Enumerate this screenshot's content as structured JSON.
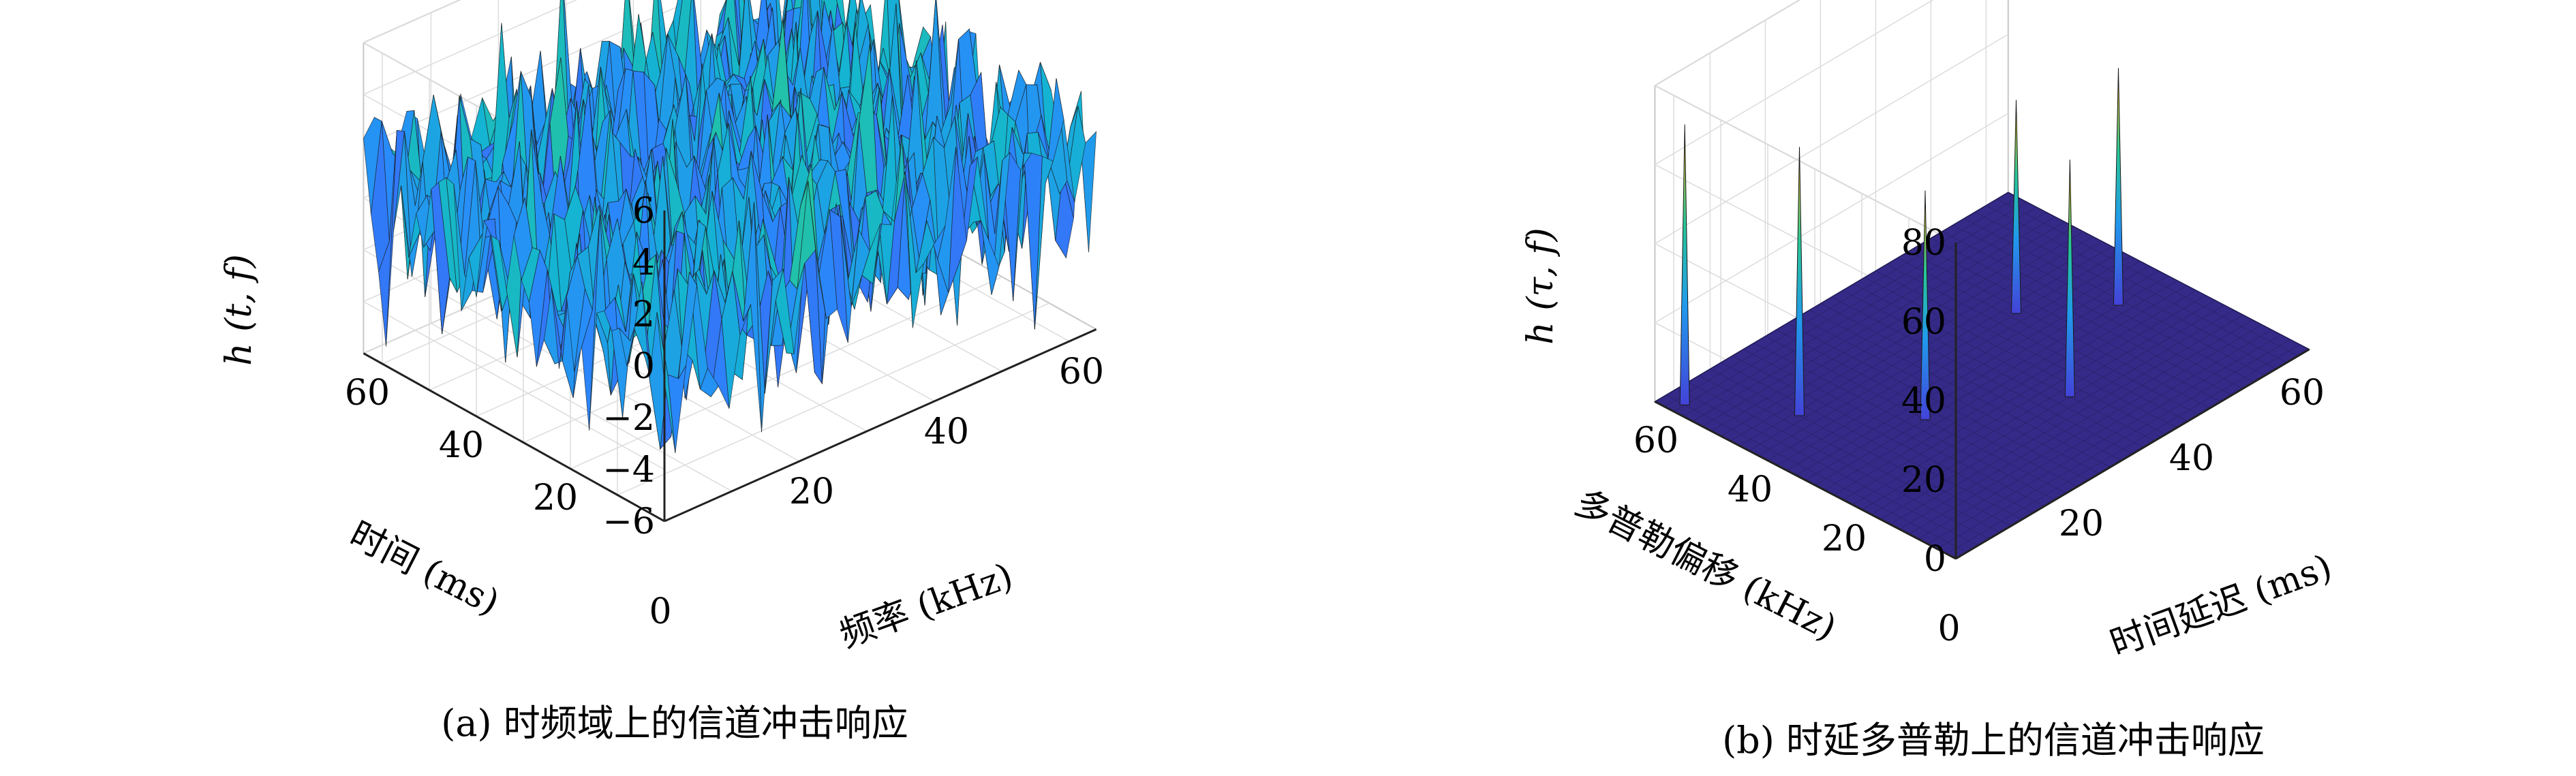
{
  "chart_data": [
    {
      "type": "surface",
      "subplot": "(a)",
      "caption": "(a) 时频域上的信道冲击响应",
      "zlabel": "h (t, f)",
      "xlabel": "频率 (kHz)",
      "ylabel": "时间 (ms)",
      "xlim": [
        0,
        64
      ],
      "ylim": [
        0,
        64
      ],
      "zlim": [
        -6,
        6
      ],
      "xticks": [
        "20",
        "40",
        "60"
      ],
      "yticks": [
        "20",
        "40",
        "60"
      ],
      "yticks_origin": "0",
      "zticks": [
        "6",
        "4",
        "2",
        "0",
        "−2",
        "−4",
        "−6"
      ],
      "zticks_values": [
        6,
        4,
        2,
        0,
        -2,
        -4,
        -6
      ],
      "grid": true,
      "colormap": "parula",
      "surface_description_values": {
        "mean": 0,
        "std": 2.0,
        "min": -5.5,
        "max": 6.0
      }
    },
    {
      "type": "surface",
      "subplot": "(b)",
      "caption": "(b) 时延多普勒上的信道冲击响应",
      "zlabel": "h (τ, f)",
      "xlabel": "时间延迟 (ms)",
      "ylabel": "多普勒偏移 (kHz)",
      "xlim": [
        0,
        64
      ],
      "ylim": [
        0,
        64
      ],
      "zlim": [
        0,
        80
      ],
      "xticks": [
        "20",
        "40",
        "60"
      ],
      "yticks": [
        "20",
        "40",
        "60"
      ],
      "yticks_origin": "0",
      "zticks": [
        "80",
        "60",
        "40",
        "20",
        "0"
      ],
      "zticks_values": [
        80,
        60,
        40,
        20,
        0
      ],
      "grid": true,
      "colormap": "parula",
      "peaks": [
        {
          "delay": 2,
          "doppler": 60,
          "value": 71
        },
        {
          "delay": 10,
          "doppler": 45,
          "value": 68
        },
        {
          "delay": 20,
          "doppler": 30,
          "value": 58
        },
        {
          "delay": 36,
          "doppler": 18,
          "value": 60
        },
        {
          "delay": 45,
          "doppler": 40,
          "value": 54
        },
        {
          "delay": 55,
          "doppler": 30,
          "value": 60
        }
      ]
    }
  ],
  "colors": {
    "parula_low": "#3e26a8",
    "parula_mid": "#12beb9",
    "parula_high": "#f9fb0e",
    "floor": "#352a87",
    "grid": "#dcdcdc"
  }
}
